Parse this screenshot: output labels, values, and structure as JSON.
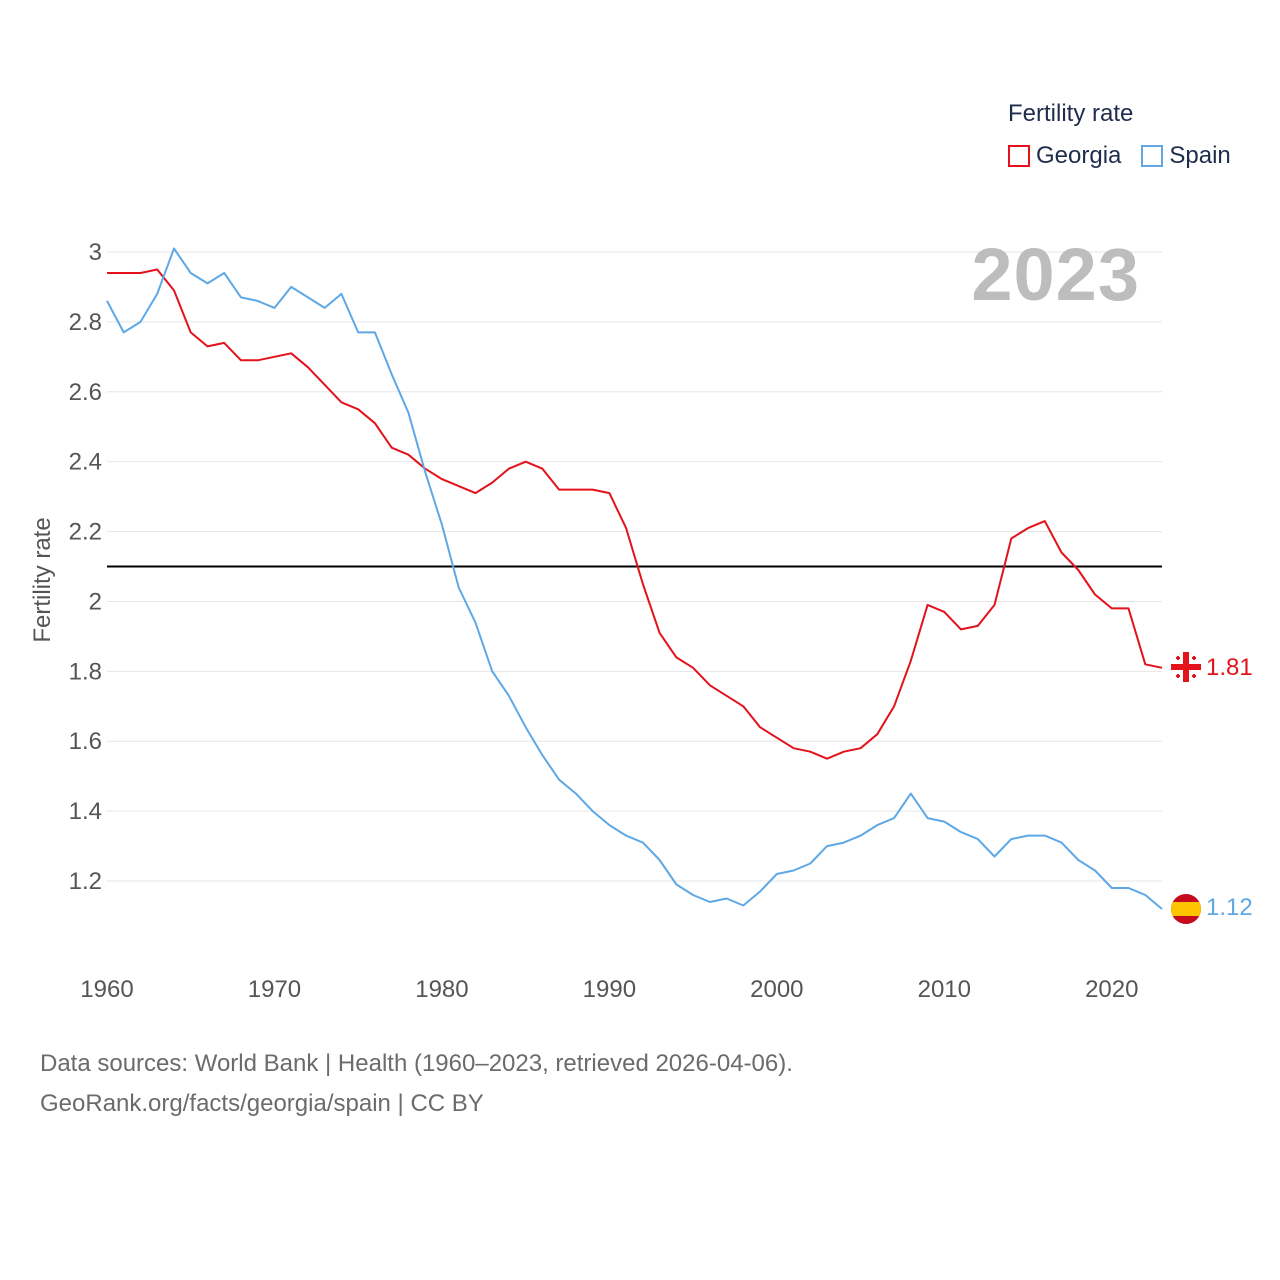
{
  "legend": {
    "title": "Fertility rate",
    "items": [
      {
        "name": "Georgia",
        "color": "#e3121b"
      },
      {
        "name": "Spain",
        "color": "#5ea8e6"
      }
    ]
  },
  "year_label": "2023",
  "footer": {
    "line1": "Data sources: World Bank | Health (1960–2023, retrieved 2026-04-06).",
    "line2": "GeoRank.org/facts/georgia/spain | CC BY"
  },
  "chart_data": {
    "type": "line",
    "title": "Fertility rate",
    "xlabel": "",
    "ylabel": "Fertility rate",
    "xlim": [
      1960,
      2023
    ],
    "ylim": [
      1.05,
      3.05
    ],
    "yticks": [
      1.2,
      1.4,
      1.6,
      1.8,
      2,
      2.2,
      2.4,
      2.6,
      2.8,
      3
    ],
    "ytick_labels": [
      "1.2",
      "1.4",
      "1.6",
      "1.8",
      "2",
      "2.2",
      "2.4",
      "2.6",
      "2.8",
      "3"
    ],
    "xticks": [
      1960,
      1970,
      1980,
      1990,
      2000,
      2010,
      2020
    ],
    "xtick_labels": [
      "1960",
      "1970",
      "1980",
      "1990",
      "2000",
      "2010",
      "2020"
    ],
    "reference_line": {
      "y": 2.1
    },
    "x": [
      1960,
      1961,
      1962,
      1963,
      1964,
      1965,
      1966,
      1967,
      1968,
      1969,
      1970,
      1971,
      1972,
      1973,
      1974,
      1975,
      1976,
      1977,
      1978,
      1979,
      1980,
      1981,
      1982,
      1983,
      1984,
      1985,
      1986,
      1987,
      1988,
      1989,
      1990,
      1991,
      1992,
      1993,
      1994,
      1995,
      1996,
      1997,
      1998,
      1999,
      2000,
      2001,
      2002,
      2003,
      2004,
      2005,
      2006,
      2007,
      2008,
      2009,
      2010,
      2011,
      2012,
      2013,
      2014,
      2015,
      2016,
      2017,
      2018,
      2019,
      2020,
      2021,
      2022,
      2023
    ],
    "series": [
      {
        "name": "Georgia",
        "color": "#e3121b",
        "end_label": "1.81",
        "values": [
          2.94,
          2.94,
          2.94,
          2.95,
          2.89,
          2.77,
          2.73,
          2.74,
          2.69,
          2.69,
          2.7,
          2.71,
          2.67,
          2.62,
          2.57,
          2.55,
          2.51,
          2.44,
          2.42,
          2.38,
          2.35,
          2.33,
          2.31,
          2.34,
          2.38,
          2.4,
          2.38,
          2.32,
          2.32,
          2.32,
          2.31,
          2.21,
          2.05,
          1.91,
          1.84,
          1.81,
          1.76,
          1.73,
          1.7,
          1.64,
          1.61,
          1.58,
          1.57,
          1.55,
          1.57,
          1.58,
          1.62,
          1.7,
          1.83,
          1.99,
          1.97,
          1.92,
          1.93,
          1.99,
          2.18,
          2.21,
          2.23,
          2.14,
          2.09,
          2.02,
          1.98,
          1.98,
          1.82,
          1.81
        ]
      },
      {
        "name": "Spain",
        "color": "#5ea8e6",
        "end_label": "1.12",
        "values": [
          2.86,
          2.77,
          2.8,
          2.88,
          3.01,
          2.94,
          2.91,
          2.94,
          2.87,
          2.86,
          2.84,
          2.9,
          2.87,
          2.84,
          2.88,
          2.77,
          2.77,
          2.65,
          2.54,
          2.37,
          2.22,
          2.04,
          1.94,
          1.8,
          1.73,
          1.64,
          1.56,
          1.49,
          1.45,
          1.4,
          1.36,
          1.33,
          1.31,
          1.26,
          1.19,
          1.16,
          1.14,
          1.15,
          1.13,
          1.17,
          1.22,
          1.23,
          1.25,
          1.3,
          1.31,
          1.33,
          1.36,
          1.38,
          1.45,
          1.38,
          1.37,
          1.34,
          1.32,
          1.27,
          1.32,
          1.33,
          1.33,
          1.31,
          1.26,
          1.23,
          1.18,
          1.18,
          1.16,
          1.12
        ]
      }
    ]
  }
}
